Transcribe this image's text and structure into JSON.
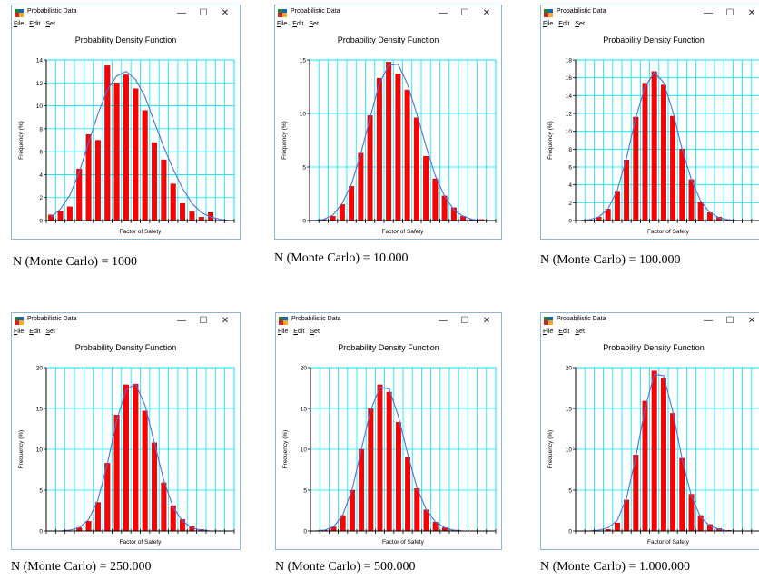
{
  "window": {
    "title": "Probabilistic Data",
    "menu": [
      "File",
      "Edit",
      "Set"
    ],
    "controls": {
      "minimize": "—",
      "maximize": "☐",
      "close": "✕"
    }
  },
  "chart_data": [
    {
      "type": "bar",
      "title": "Probability Density Function",
      "xlabel": "Factor of Safety",
      "ylabel": "Frequency (%)",
      "ylim": [
        0,
        14
      ],
      "yticks": [
        0,
        2,
        4,
        6,
        8,
        10,
        12,
        14
      ],
      "grid": true,
      "values": [
        0.5,
        0.8,
        1.2,
        4.5,
        7.5,
        7.0,
        13.5,
        12.0,
        12.7,
        11.5,
        9.6,
        6.8,
        5.3,
        3.2,
        1.5,
        0.8,
        0.3,
        0.7,
        0,
        0
      ],
      "curve": [
        0.3,
        1.0,
        2.2,
        4.2,
        6.8,
        9.3,
        11.4,
        12.6,
        13.0,
        12.3,
        10.8,
        8.6,
        6.4,
        4.5,
        2.8,
        1.5,
        0.7,
        0.3,
        0.1,
        0.0
      ],
      "bar_color": "#ff0000",
      "curve_color": "#4f6fdc",
      "caption": "N (Monte Carlo) = 1000"
    },
    {
      "type": "bar",
      "title": "Probability Density Function",
      "xlabel": "Factor of Safety",
      "ylabel": "Frequency (%)",
      "ylim": [
        0,
        15
      ],
      "yticks": [
        0,
        5,
        10,
        15
      ],
      "grid": true,
      "values": [
        0,
        0.1,
        0.4,
        1.5,
        3.2,
        6.3,
        9.8,
        13.3,
        14.8,
        13.7,
        12.2,
        9.6,
        6.0,
        3.9,
        2.3,
        1.2,
        0.4,
        0.1,
        0.1,
        0
      ],
      "curve": [
        0.0,
        0.1,
        0.5,
        1.6,
        3.4,
        6.2,
        9.6,
        12.8,
        14.5,
        14.6,
        12.8,
        10.0,
        7.0,
        4.2,
        2.3,
        1.0,
        0.4,
        0.1,
        0.0,
        0.0
      ],
      "bar_color": "#ff0000",
      "curve_color": "#4f6fdc",
      "caption": "N (Monte Carlo) = 10.000"
    },
    {
      "type": "bar",
      "title": "Probability Density Function",
      "xlabel": "Factor of Safety",
      "ylabel": "Frequency (%)",
      "ylim": [
        0,
        18
      ],
      "yticks": [
        0,
        2,
        4,
        6,
        8,
        10,
        12,
        14,
        16,
        18
      ],
      "grid": true,
      "values": [
        0,
        0.1,
        0.4,
        1.3,
        3.3,
        6.8,
        11.6,
        15.4,
        16.7,
        15.2,
        11.7,
        8.0,
        4.6,
        2.1,
        0.9,
        0.4,
        0.1,
        0,
        0,
        0
      ],
      "curve": [
        0.0,
        0.1,
        0.4,
        1.3,
        3.4,
        7.0,
        11.5,
        15.0,
        16.6,
        15.5,
        12.2,
        8.0,
        4.6,
        2.2,
        0.9,
        0.3,
        0.1,
        0.0,
        0.0,
        0.0
      ],
      "bar_color": "#ff0000",
      "curve_color": "#4f6fdc",
      "caption": "N (Monte Carlo) = 100.000"
    },
    {
      "type": "bar",
      "title": "Probability Density Function",
      "xlabel": "Factor of Safety",
      "ylabel": "Frequency (%)",
      "ylim": [
        0,
        20
      ],
      "yticks": [
        0,
        5,
        10,
        15,
        20
      ],
      "grid": true,
      "values": [
        0,
        0,
        0,
        0.4,
        1.2,
        3.5,
        8.3,
        14.2,
        17.9,
        18.0,
        14.7,
        10.8,
        5.9,
        3.1,
        1.4,
        0.6,
        0.2,
        0,
        0,
        0
      ],
      "curve": [
        0.0,
        0.0,
        0.1,
        0.4,
        1.4,
        3.8,
        8.2,
        13.6,
        17.3,
        18.0,
        15.4,
        10.8,
        6.2,
        2.9,
        1.2,
        0.4,
        0.1,
        0.0,
        0.0,
        0.0
      ],
      "bar_color": "#ff0000",
      "curve_color": "#4f6fdc",
      "caption": "N (Monte Carlo) = 250.000"
    },
    {
      "type": "bar",
      "title": "Probability Density Function",
      "xlabel": "Factor of Safety",
      "ylabel": "Frequency (%)",
      "ylim": [
        0,
        20
      ],
      "yticks": [
        0,
        5,
        10,
        15,
        20
      ],
      "grid": true,
      "values": [
        0,
        0.1,
        0.5,
        1.9,
        5.0,
        10.0,
        15.0,
        17.9,
        17.0,
        13.3,
        9.0,
        5.2,
        2.6,
        1.1,
        0.4,
        0.1,
        0,
        0,
        0,
        0
      ],
      "curve": [
        0.0,
        0.1,
        0.5,
        2.0,
        5.1,
        10.0,
        14.8,
        17.6,
        17.4,
        14.0,
        9.4,
        5.3,
        2.6,
        1.1,
        0.4,
        0.1,
        0.0,
        0.0,
        0.0,
        0.0
      ],
      "bar_color": "#ff0000",
      "curve_color": "#4f6fdc",
      "caption": "N (Monte Carlo) = 500.000"
    },
    {
      "type": "bar",
      "title": "Probability Density Function",
      "xlabel": "Factor of Safety",
      "ylabel": "Frequency (%)",
      "ylim": [
        0,
        20
      ],
      "yticks": [
        0,
        5,
        10,
        15,
        20
      ],
      "grid": true,
      "values": [
        0,
        0,
        0,
        0.2,
        1.0,
        3.8,
        9.3,
        15.9,
        19.6,
        18.7,
        14.4,
        8.9,
        4.5,
        1.9,
        0.8,
        0.3,
        0.1,
        0,
        0,
        0
      ],
      "curve": [
        0.0,
        0.0,
        0.1,
        0.4,
        1.3,
        4.0,
        9.0,
        15.0,
        19.2,
        19.0,
        14.6,
        8.8,
        4.3,
        1.7,
        0.6,
        0.2,
        0.0,
        0.0,
        0.0,
        0.0
      ],
      "bar_color": "#ff0000",
      "curve_color": "#4f6fdc",
      "caption": "N (Monte Carlo) = 1.000.000"
    }
  ]
}
